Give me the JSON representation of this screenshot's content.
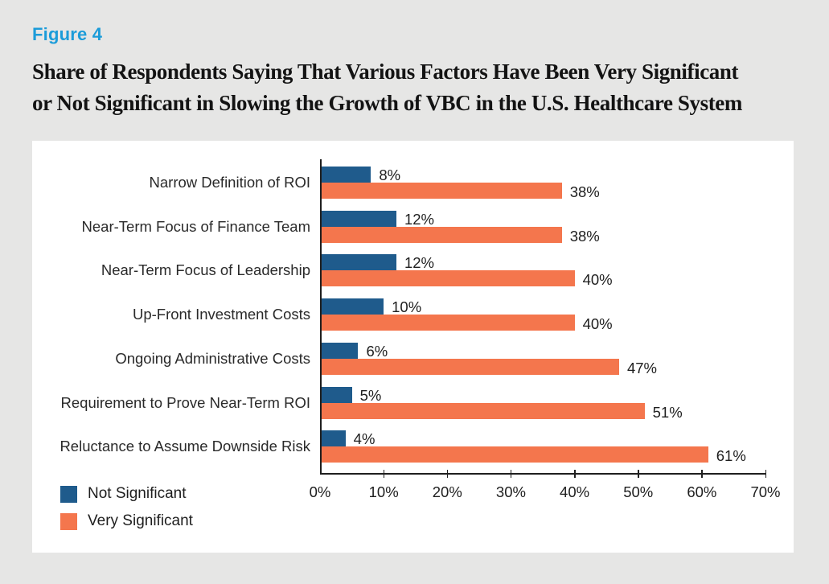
{
  "figure_label": "Figure 4",
  "title_line1": "Share of Respondents Saying That Various Factors Have Been Very Significant",
  "title_line2": "or Not Significant in Slowing the Growth of VBC in the U.S. Healthcare System",
  "colors": {
    "figure_label_blue": "#1c9cd9",
    "not_significant_blue": "#1f5b8c",
    "very_significant_orange": "#f4764d",
    "page_background": "#e6e6e5",
    "panel_background": "#ffffff",
    "axis": "#1f1f1f"
  },
  "legend": [
    {
      "label": "Not Significant",
      "color": "#1f5b8c"
    },
    {
      "label": "Very Significant",
      "color": "#f4764d"
    }
  ],
  "chart_data": {
    "type": "bar",
    "orientation": "horizontal",
    "title": "Share of Respondents Saying That Various Factors Have Been Very Significant or Not Significant in Slowing the Growth of VBC in the U.S. Healthcare System",
    "categories": [
      "Narrow Definition of ROI",
      "Near-Term Focus of Finance Team",
      "Near-Term Focus of Leadership",
      "Up-Front Investment Costs",
      "Ongoing Administrative Costs",
      "Requirement to Prove Near-Term ROI",
      "Reluctance to Assume Downside Risk"
    ],
    "series": [
      {
        "name": "Not Significant",
        "color": "#1f5b8c",
        "values": [
          8,
          12,
          12,
          10,
          6,
          5,
          4
        ]
      },
      {
        "name": "Very Significant",
        "color": "#f4764d",
        "values": [
          38,
          38,
          40,
          40,
          47,
          51,
          61
        ]
      }
    ],
    "value_suffix": "%",
    "x_ticks": [
      "0%",
      "10%",
      "20%",
      "30%",
      "40%",
      "50%",
      "60%",
      "70%"
    ],
    "xlim": [
      0,
      70
    ],
    "grid": false,
    "legend_position": "bottom-left",
    "value_labels": "end-of-bar"
  }
}
